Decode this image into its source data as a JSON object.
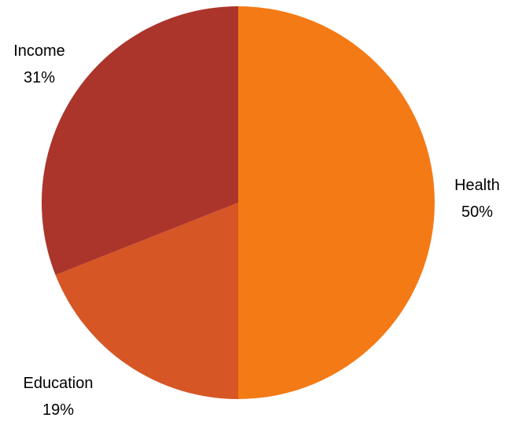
{
  "chart_data": {
    "type": "pie",
    "title": "",
    "categories": [
      "Health",
      "Education",
      "Income"
    ],
    "values": [
      50,
      19,
      31
    ],
    "value_labels": [
      "50%",
      "19%",
      "31%"
    ],
    "colors": [
      "#f47a16",
      "#d65625",
      "#ab352b"
    ],
    "start": "12 o'clock",
    "direction": "clockwise",
    "legend": "none"
  }
}
